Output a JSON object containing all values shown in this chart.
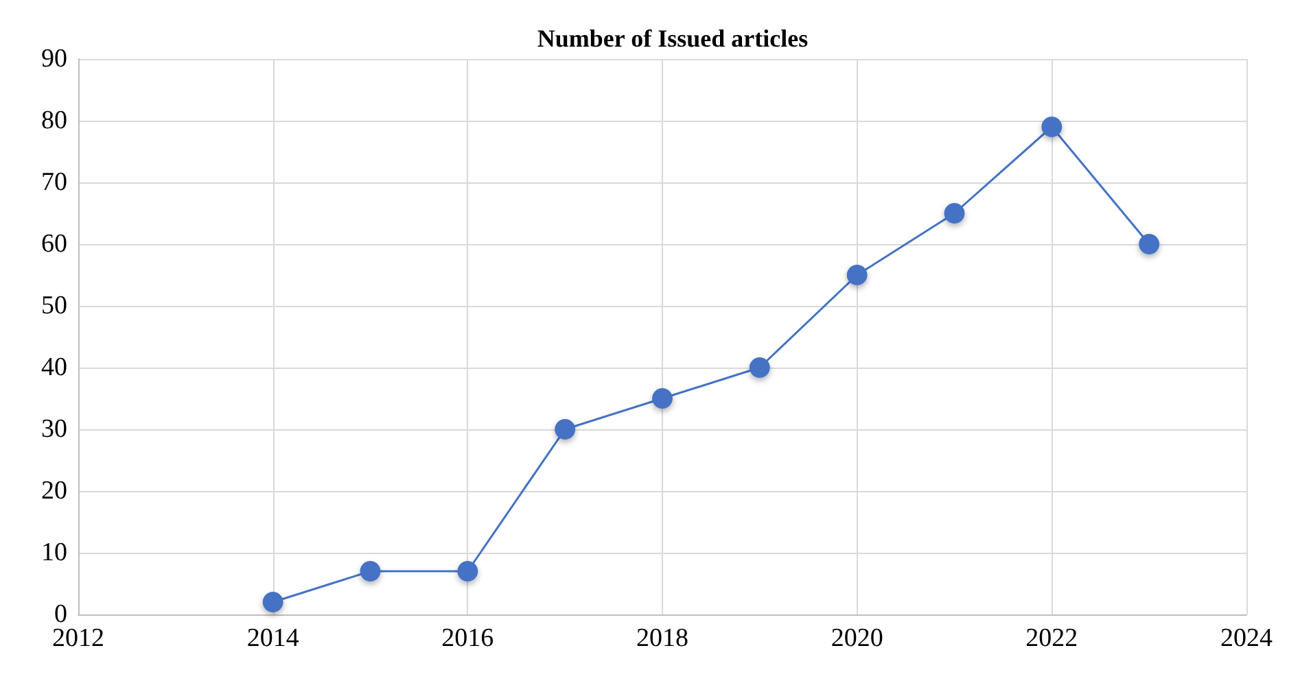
{
  "chart_data": {
    "type": "line",
    "title": "Number of Issued articles",
    "x": [
      2014,
      2015,
      2016,
      2017,
      2018,
      2019,
      2020,
      2021,
      2022,
      2023
    ],
    "series": [
      {
        "color": "#4472c4",
        "values": [
          2,
          7,
          7,
          30,
          35,
          40,
          55,
          65,
          79,
          60
        ]
      }
    ],
    "xlim": [
      2012,
      2024
    ],
    "xticks": [
      2012,
      2014,
      2016,
      2018,
      2020,
      2022,
      2024
    ],
    "ylim": [
      0,
      90
    ],
    "yticks": [
      0,
      10,
      20,
      30,
      40,
      50,
      60,
      70,
      80,
      90
    ],
    "grid": true,
    "marker": "circle",
    "line_style": "solid"
  }
}
